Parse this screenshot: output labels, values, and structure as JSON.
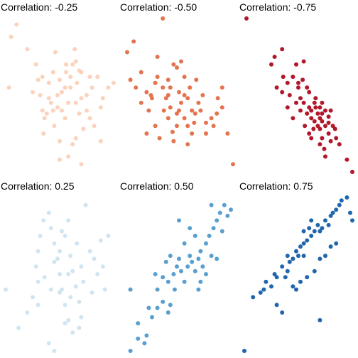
{
  "chart_data": [
    {
      "type": "scatter",
      "title": "Correlation: -0.25",
      "color": "#fbd2bc",
      "points": [
        [
          0.1,
          0.96
        ],
        [
          0.05,
          0.88
        ],
        [
          0.03,
          0.55
        ],
        [
          0.2,
          0.8
        ],
        [
          0.28,
          0.7
        ],
        [
          0.25,
          0.52
        ],
        [
          0.32,
          0.5
        ],
        [
          0.34,
          0.4
        ],
        [
          0.38,
          0.38
        ],
        [
          0.35,
          0.25
        ],
        [
          0.42,
          0.45
        ],
        [
          0.4,
          0.58
        ],
        [
          0.5,
          0.6
        ],
        [
          0.45,
          0.3
        ],
        [
          0.48,
          0.42
        ],
        [
          0.55,
          0.35
        ],
        [
          0.5,
          0.2
        ],
        [
          0.55,
          0.55
        ],
        [
          0.6,
          0.62
        ],
        [
          0.58,
          0.45
        ],
        [
          0.62,
          0.7
        ],
        [
          0.65,
          0.72
        ],
        [
          0.68,
          0.38
        ],
        [
          0.6,
          0.55
        ],
        [
          0.65,
          0.22
        ],
        [
          0.7,
          0.48
        ],
        [
          0.75,
          0.5
        ],
        [
          0.72,
          0.28
        ],
        [
          0.8,
          0.55
        ],
        [
          0.78,
          0.35
        ],
        [
          0.85,
          0.62
        ],
        [
          0.88,
          0.42
        ],
        [
          0.9,
          0.48
        ],
        [
          0.95,
          0.55
        ],
        [
          1.0,
          0.58
        ],
        [
          0.58,
          0.1
        ],
        [
          0.7,
          0.05
        ],
        [
          0.62,
          0.18
        ],
        [
          0.75,
          0.4
        ],
        [
          0.44,
          0.65
        ],
        [
          0.46,
          0.78
        ],
        [
          0.52,
          0.4
        ],
        [
          0.4,
          0.48
        ],
        [
          0.3,
          0.6
        ],
        [
          0.56,
          0.65
        ],
        [
          0.66,
          0.58
        ],
        [
          0.82,
          0.3
        ],
        [
          0.88,
          0.2
        ],
        [
          0.56,
          0.7
        ],
        [
          0.34,
          0.62
        ],
        [
          0.64,
          0.8
        ],
        [
          0.68,
          0.66
        ],
        [
          0.52,
          0.52
        ],
        [
          0.36,
          0.35
        ],
        [
          0.78,
          0.62
        ],
        [
          0.5,
          0.08
        ],
        [
          0.65,
          0.45
        ],
        [
          0.7,
          0.65
        ],
        [
          0.44,
          0.4
        ],
        [
          0.48,
          0.5
        ]
      ]
    },
    {
      "type": "scatter",
      "title": "Correlation: -0.50",
      "color": "#e4744f",
      "points": [
        [
          0.35,
          1.0
        ],
        [
          0.08,
          0.85
        ],
        [
          0.02,
          0.78
        ],
        [
          0.05,
          0.6
        ],
        [
          0.15,
          0.65
        ],
        [
          0.1,
          0.55
        ],
        [
          0.2,
          0.52
        ],
        [
          0.25,
          0.48
        ],
        [
          0.15,
          0.45
        ],
        [
          0.22,
          0.4
        ],
        [
          0.3,
          0.62
        ],
        [
          0.28,
          0.58
        ],
        [
          0.35,
          0.55
        ],
        [
          0.4,
          0.6
        ],
        [
          0.38,
          0.48
        ],
        [
          0.42,
          0.42
        ],
        [
          0.45,
          0.7
        ],
        [
          0.48,
          0.68
        ],
        [
          0.5,
          0.52
        ],
        [
          0.52,
          0.45
        ],
        [
          0.55,
          0.62
        ],
        [
          0.58,
          0.48
        ],
        [
          0.6,
          0.55
        ],
        [
          0.62,
          0.4
        ],
        [
          0.4,
          0.35
        ],
        [
          0.48,
          0.3
        ],
        [
          0.55,
          0.35
        ],
        [
          0.65,
          0.38
        ],
        [
          0.68,
          0.45
        ],
        [
          0.7,
          0.4
        ],
        [
          0.75,
          0.32
        ],
        [
          0.8,
          0.35
        ],
        [
          0.85,
          0.38
        ],
        [
          0.9,
          0.42
        ],
        [
          0.95,
          0.25
        ],
        [
          1.0,
          0.05
        ],
        [
          0.2,
          0.25
        ],
        [
          0.32,
          0.22
        ],
        [
          0.45,
          0.2
        ],
        [
          0.58,
          0.18
        ],
        [
          0.62,
          0.25
        ],
        [
          0.75,
          0.25
        ],
        [
          0.9,
          0.55
        ],
        [
          0.5,
          0.4
        ],
        [
          0.28,
          0.3
        ],
        [
          0.42,
          0.55
        ],
        [
          0.55,
          0.5
        ],
        [
          0.72,
          0.5
        ],
        [
          0.48,
          0.38
        ],
        [
          0.36,
          0.4
        ],
        [
          0.58,
          0.3
        ],
        [
          0.64,
          0.32
        ],
        [
          0.66,
          0.6
        ],
        [
          0.82,
          0.3
        ],
        [
          0.4,
          0.5
        ],
        [
          0.3,
          0.75
        ],
        [
          0.52,
          0.72
        ],
        [
          0.44,
          0.26
        ],
        [
          0.86,
          0.48
        ],
        [
          0.24,
          0.5
        ]
      ]
    },
    {
      "type": "scatter",
      "title": "Correlation: -0.75",
      "color": "#b2182b",
      "points": [
        [
          0.02,
          1.0
        ],
        [
          0.35,
          0.8
        ],
        [
          0.28,
          0.75
        ],
        [
          0.25,
          0.7
        ],
        [
          0.48,
          0.7
        ],
        [
          0.55,
          0.72
        ],
        [
          0.45,
          0.62
        ],
        [
          0.4,
          0.58
        ],
        [
          0.5,
          0.55
        ],
        [
          0.35,
          0.52
        ],
        [
          0.3,
          0.55
        ],
        [
          0.42,
          0.5
        ],
        [
          0.52,
          0.48
        ],
        [
          0.6,
          0.52
        ],
        [
          0.65,
          0.45
        ],
        [
          0.55,
          0.45
        ],
        [
          0.6,
          0.42
        ],
        [
          0.62,
          0.4
        ],
        [
          0.68,
          0.38
        ],
        [
          0.7,
          0.42
        ],
        [
          0.72,
          0.38
        ],
        [
          0.75,
          0.4
        ],
        [
          0.78,
          0.36
        ],
        [
          0.72,
          0.33
        ],
        [
          0.65,
          0.33
        ],
        [
          0.68,
          0.3
        ],
        [
          0.7,
          0.28
        ],
        [
          0.75,
          0.3
        ],
        [
          0.8,
          0.4
        ],
        [
          0.82,
          0.3
        ],
        [
          0.78,
          0.25
        ],
        [
          0.72,
          0.22
        ],
        [
          0.7,
          0.18
        ],
        [
          0.74,
          0.15
        ],
        [
          0.8,
          0.2
        ],
        [
          0.85,
          0.22
        ],
        [
          0.88,
          0.18
        ],
        [
          0.75,
          0.1
        ],
        [
          0.95,
          0.08
        ],
        [
          1.0,
          0.0
        ],
        [
          0.62,
          0.35
        ],
        [
          0.58,
          0.38
        ],
        [
          0.48,
          0.45
        ],
        [
          0.4,
          0.42
        ],
        [
          0.52,
          0.4
        ],
        [
          0.66,
          0.48
        ],
        [
          0.56,
          0.3
        ],
        [
          0.6,
          0.25
        ],
        [
          0.45,
          0.35
        ],
        [
          0.5,
          0.58
        ],
        [
          0.62,
          0.22
        ],
        [
          0.78,
          0.32
        ],
        [
          0.84,
          0.28
        ],
        [
          0.72,
          0.45
        ],
        [
          0.66,
          0.42
        ],
        [
          0.54,
          0.6
        ],
        [
          0.36,
          0.62
        ],
        [
          0.58,
          0.55
        ],
        [
          0.7,
          0.35
        ],
        [
          0.64,
          0.28
        ]
      ]
    },
    {
      "type": "scatter",
      "title": "Correlation: 0.25",
      "color": "#d1e5f0",
      "points": [
        [
          0.0,
          0.4
        ],
        [
          0.12,
          0.15
        ],
        [
          0.2,
          0.25
        ],
        [
          0.25,
          0.35
        ],
        [
          0.3,
          0.45
        ],
        [
          0.28,
          0.55
        ],
        [
          0.3,
          0.65
        ],
        [
          0.32,
          0.75
        ],
        [
          0.35,
          0.85
        ],
        [
          0.4,
          0.9
        ],
        [
          0.42,
          0.8
        ],
        [
          0.45,
          0.7
        ],
        [
          0.48,
          0.6
        ],
        [
          0.5,
          0.5
        ],
        [
          0.52,
          0.4
        ],
        [
          0.55,
          0.3
        ],
        [
          0.58,
          0.2
        ],
        [
          0.5,
          0.65
        ],
        [
          0.55,
          0.75
        ],
        [
          0.58,
          0.85
        ],
        [
          0.6,
          0.62
        ],
        [
          0.62,
          0.52
        ],
        [
          0.65,
          0.42
        ],
        [
          0.68,
          0.32
        ],
        [
          0.7,
          0.55
        ],
        [
          0.72,
          0.45
        ],
        [
          0.74,
          0.95
        ],
        [
          0.78,
          0.65
        ],
        [
          0.82,
          0.6
        ],
        [
          0.85,
          0.5
        ],
        [
          0.88,
          0.72
        ],
        [
          0.9,
          0.55
        ],
        [
          0.92,
          0.4
        ],
        [
          0.95,
          0.75
        ],
        [
          0.4,
          0.05
        ],
        [
          0.45,
          0.0
        ],
        [
          0.55,
          0.18
        ],
        [
          0.62,
          0.12
        ],
        [
          0.68,
          0.15
        ],
        [
          0.7,
          0.22
        ],
        [
          0.45,
          0.58
        ],
        [
          0.5,
          0.38
        ],
        [
          0.36,
          0.48
        ],
        [
          0.42,
          0.4
        ],
        [
          0.6,
          0.35
        ],
        [
          0.66,
          0.7
        ],
        [
          0.3,
          0.3
        ],
        [
          0.52,
          0.78
        ],
        [
          0.8,
          0.38
        ],
        [
          0.58,
          0.5
        ]
      ]
    },
    {
      "type": "scatter",
      "title": "Correlation: 0.50",
      "color": "#5a9fcf",
      "points": [
        [
          0.05,
          0.0
        ],
        [
          0.12,
          0.08
        ],
        [
          0.18,
          0.05
        ],
        [
          0.2,
          0.1
        ],
        [
          0.25,
          0.22
        ],
        [
          0.3,
          0.28
        ],
        [
          0.22,
          0.28
        ],
        [
          0.35,
          0.32
        ],
        [
          0.4,
          0.25
        ],
        [
          0.42,
          0.3
        ],
        [
          0.3,
          0.4
        ],
        [
          0.35,
          0.48
        ],
        [
          0.4,
          0.45
        ],
        [
          0.45,
          0.5
        ],
        [
          0.48,
          0.55
        ],
        [
          0.5,
          0.6
        ],
        [
          0.42,
          0.62
        ],
        [
          0.38,
          0.58
        ],
        [
          0.52,
          0.52
        ],
        [
          0.55,
          0.45
        ],
        [
          0.58,
          0.55
        ],
        [
          0.6,
          0.62
        ],
        [
          0.62,
          0.58
        ],
        [
          0.65,
          0.52
        ],
        [
          0.68,
          0.6
        ],
        [
          0.7,
          0.65
        ],
        [
          0.72,
          0.55
        ],
        [
          0.75,
          0.7
        ],
        [
          0.78,
          0.75
        ],
        [
          0.8,
          0.62
        ],
        [
          0.82,
          0.8
        ],
        [
          0.85,
          0.85
        ],
        [
          0.88,
          0.9
        ],
        [
          0.9,
          0.78
        ],
        [
          0.92,
          0.95
        ],
        [
          0.95,
          0.88
        ],
        [
          0.98,
          0.92
        ],
        [
          0.7,
          0.45
        ],
        [
          0.75,
          0.5
        ],
        [
          0.85,
          0.6
        ],
        [
          0.05,
          0.4
        ],
        [
          0.12,
          0.18
        ],
        [
          0.6,
          0.8
        ],
        [
          0.55,
          0.7
        ],
        [
          0.28,
          0.5
        ],
        [
          0.65,
          0.75
        ],
        [
          0.8,
          0.95
        ],
        [
          0.46,
          0.4
        ],
        [
          0.5,
          0.85
        ],
        [
          0.68,
          0.4
        ]
      ]
    },
    {
      "type": "scatter",
      "title": "Correlation: 0.75",
      "color": "#2166ac",
      "points": [
        [
          0.0,
          0.0
        ],
        [
          0.08,
          0.35
        ],
        [
          0.15,
          0.38
        ],
        [
          0.18,
          0.4
        ],
        [
          0.2,
          0.45
        ],
        [
          0.25,
          0.42
        ],
        [
          0.28,
          0.5
        ],
        [
          0.3,
          0.48
        ],
        [
          0.35,
          0.55
        ],
        [
          0.4,
          0.52
        ],
        [
          0.42,
          0.58
        ],
        [
          0.45,
          0.6
        ],
        [
          0.48,
          0.65
        ],
        [
          0.5,
          0.62
        ],
        [
          0.52,
          0.68
        ],
        [
          0.55,
          0.7
        ],
        [
          0.58,
          0.72
        ],
        [
          0.55,
          0.78
        ],
        [
          0.6,
          0.8
        ],
        [
          0.62,
          0.75
        ],
        [
          0.65,
          0.78
        ],
        [
          0.68,
          0.82
        ],
        [
          0.7,
          0.78
        ],
        [
          0.72,
          0.8
        ],
        [
          0.75,
          0.85
        ],
        [
          0.78,
          0.82
        ],
        [
          0.8,
          0.88
        ],
        [
          0.82,
          0.9
        ],
        [
          0.85,
          0.92
        ],
        [
          0.88,
          0.95
        ],
        [
          0.9,
          0.98
        ],
        [
          0.95,
          1.0
        ],
        [
          0.98,
          0.9
        ],
        [
          1.0,
          0.85
        ],
        [
          0.38,
          0.48
        ],
        [
          0.45,
          0.42
        ],
        [
          0.52,
          0.45
        ],
        [
          0.58,
          0.48
        ],
        [
          0.65,
          0.52
        ],
        [
          0.7,
          0.6
        ],
        [
          0.75,
          0.62
        ],
        [
          0.8,
          0.68
        ],
        [
          0.85,
          0.7
        ],
        [
          0.7,
          0.2
        ],
        [
          0.35,
          0.25
        ],
        [
          0.3,
          0.3
        ],
        [
          0.48,
          0.4
        ],
        [
          0.62,
          0.85
        ],
        [
          0.55,
          0.62
        ],
        [
          0.4,
          0.62
        ]
      ]
    }
  ]
}
